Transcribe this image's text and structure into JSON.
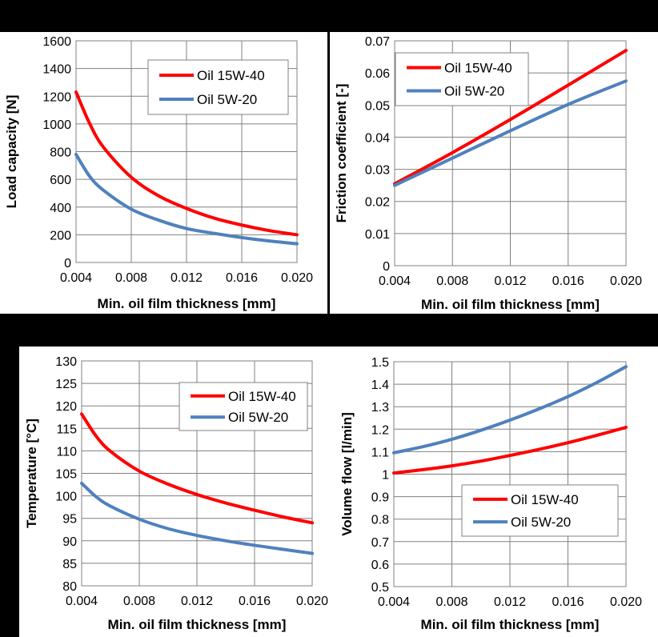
{
  "colors": {
    "oil_15w40": "#ff0000",
    "oil_5w20": "#4f81bd",
    "grid": "#808080",
    "axis": "#808080",
    "background_outer": "#000000",
    "background_panel": "#ffffff"
  },
  "chart_data": [
    {
      "type": "line",
      "title": "",
      "xlabel": "Min. oil film thickness [mm]",
      "ylabel": "Load capacity [N]",
      "xlim": [
        0.004,
        0.02
      ],
      "ylim": [
        0,
        1600
      ],
      "xticks": [
        "0.004",
        "0.008",
        "0.012",
        "0.016",
        "0.020"
      ],
      "yticks": [
        "0",
        "200",
        "400",
        "600",
        "800",
        "1000",
        "1200",
        "1400",
        "1600"
      ],
      "grid": true,
      "legend": "top-right",
      "x": [
        0.004,
        0.005,
        0.006,
        0.008,
        0.01,
        0.012,
        0.014,
        0.016,
        0.018,
        0.02
      ],
      "series": [
        {
          "name": "Oil 15W-40",
          "color": "#ff0000",
          "values": [
            1230,
            1000,
            830,
            615,
            480,
            390,
            320,
            270,
            230,
            200
          ]
        },
        {
          "name": "Oil 5W-20",
          "color": "#4f81bd",
          "values": [
            780,
            620,
            520,
            385,
            305,
            245,
            210,
            180,
            155,
            135
          ]
        }
      ]
    },
    {
      "type": "line",
      "title": "",
      "xlabel": "Min. oil film thickness [mm]",
      "ylabel": "Friction coefficient [-]",
      "xlim": [
        0.004,
        0.02
      ],
      "ylim": [
        0,
        0.07
      ],
      "xticks": [
        "0.004",
        "0.008",
        "0.012",
        "0.016",
        "0.020"
      ],
      "yticks": [
        "0",
        "0.01",
        "0.02",
        "0.03",
        "0.04",
        "0.05",
        "0.06",
        "0.07"
      ],
      "grid": true,
      "legend": "top-left",
      "x": [
        0.004,
        0.008,
        0.012,
        0.016,
        0.02
      ],
      "series": [
        {
          "name": "Oil 15W-40",
          "color": "#ff0000",
          "values": [
            0.0255,
            0.0352,
            0.0455,
            0.0562,
            0.067
          ]
        },
        {
          "name": "Oil 5W-20",
          "color": "#4f81bd",
          "values": [
            0.025,
            0.0335,
            0.042,
            0.0502,
            0.0575
          ]
        }
      ]
    },
    {
      "type": "line",
      "title": "",
      "xlabel": "Min. oil film thickness [mm]",
      "ylabel": "Temperature [°C]",
      "xlim": [
        0.004,
        0.02
      ],
      "ylim": [
        80,
        130
      ],
      "xticks": [
        "0.004",
        "0.008",
        "0.012",
        "0.016",
        "0.020"
      ],
      "yticks": [
        "80",
        "85",
        "90",
        "95",
        "100",
        "105",
        "110",
        "115",
        "120",
        "125",
        "130"
      ],
      "grid": true,
      "legend": "top-right",
      "x": [
        0.004,
        0.005,
        0.006,
        0.008,
        0.01,
        0.012,
        0.014,
        0.016,
        0.018,
        0.02
      ],
      "series": [
        {
          "name": "Oil 15W-40",
          "color": "#ff0000",
          "values": [
            118.2,
            113.3,
            109.9,
            105.5,
            102.6,
            100.3,
            98.4,
            96.8,
            95.3,
            94.0
          ]
        },
        {
          "name": "Oil 5W-20",
          "color": "#4f81bd",
          "values": [
            102.8,
            99.8,
            97.7,
            94.8,
            92.7,
            91.2,
            90.0,
            89.0,
            88.1,
            87.2
          ]
        }
      ]
    },
    {
      "type": "line",
      "title": "",
      "xlabel": "Min. oil film thickness [mm]",
      "ylabel": "Volume flow [l/min]",
      "xlim": [
        0.004,
        0.02
      ],
      "ylim": [
        0.5,
        1.5
      ],
      "xticks": [
        "0.004",
        "0.008",
        "0.012",
        "0.016",
        "0.020"
      ],
      "yticks": [
        "0.5",
        "0.6",
        "0.7",
        "0.8",
        "0.9",
        "1",
        "1.1",
        "1.2",
        "1.3",
        "1.4",
        "1.5"
      ],
      "grid": true,
      "legend": "bottom-right",
      "x": [
        0.004,
        0.006,
        0.008,
        0.01,
        0.012,
        0.014,
        0.016,
        0.018,
        0.02
      ],
      "series": [
        {
          "name": "Oil 15W-40",
          "color": "#ff0000",
          "values": [
            1.005,
            1.02,
            1.037,
            1.058,
            1.083,
            1.11,
            1.14,
            1.173,
            1.208
          ]
        },
        {
          "name": "Oil 5W-20",
          "color": "#4f81bd",
          "values": [
            1.095,
            1.122,
            1.155,
            1.195,
            1.24,
            1.29,
            1.345,
            1.408,
            1.478
          ]
        }
      ]
    }
  ]
}
